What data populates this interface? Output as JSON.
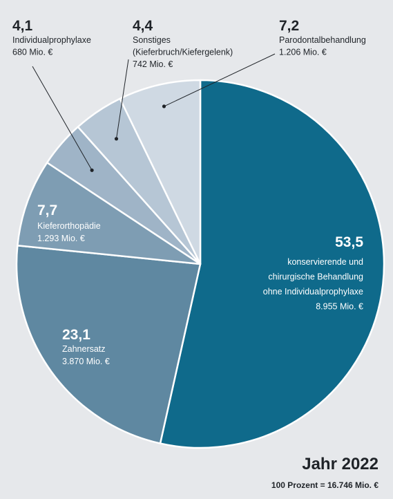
{
  "chart_data": {
    "type": "pie",
    "total_label": "100 Prozent = 16.746 Mio. €",
    "year_label": "Jahr 2022",
    "slices": [
      {
        "pct_label": "53,5",
        "value": 53.5,
        "amount": "8.955 Mio. €",
        "label_lines": [
          "konservierende und",
          "chirurgische Behandlung",
          "ohne Individualprophylaxe"
        ],
        "color": "#0f6a8b",
        "text_color": "#ffffff",
        "label_style": "inside-right"
      },
      {
        "pct_label": "23,1",
        "value": 23.1,
        "amount": "3.870 Mio. €",
        "label_lines": [
          "Zahnersatz"
        ],
        "color": "#5f88a1",
        "text_color": "#ffffff",
        "label_style": "inside-left"
      },
      {
        "pct_label": "7,7",
        "value": 7.7,
        "amount": "1.293 Mio. €",
        "label_lines": [
          "Kieferorthopädie"
        ],
        "color": "#7e9db3",
        "text_color": "#ffffff",
        "label_style": "inside-left"
      },
      {
        "pct_label": "4,1",
        "value": 4.1,
        "amount": "680 Mio. €",
        "label_lines": [
          "Individualprophylaxe"
        ],
        "color": "#9fb4c7",
        "text_color": "#1f2328",
        "label_style": "outside"
      },
      {
        "pct_label": "4,4",
        "value": 4.4,
        "amount": "742 Mio. €",
        "label_lines": [
          "Sonstiges",
          "(Kieferbruch/Kiefergelenk)"
        ],
        "color": "#b6c6d5",
        "text_color": "#1f2328",
        "label_style": "outside"
      },
      {
        "pct_label": "7,2",
        "value": 7.2,
        "amount": "1.206 Mio. €",
        "label_lines": [
          "Parodontalbehandlung"
        ],
        "color": "#cfd9e3",
        "text_color": "#1f2328",
        "label_style": "outside"
      }
    ]
  }
}
